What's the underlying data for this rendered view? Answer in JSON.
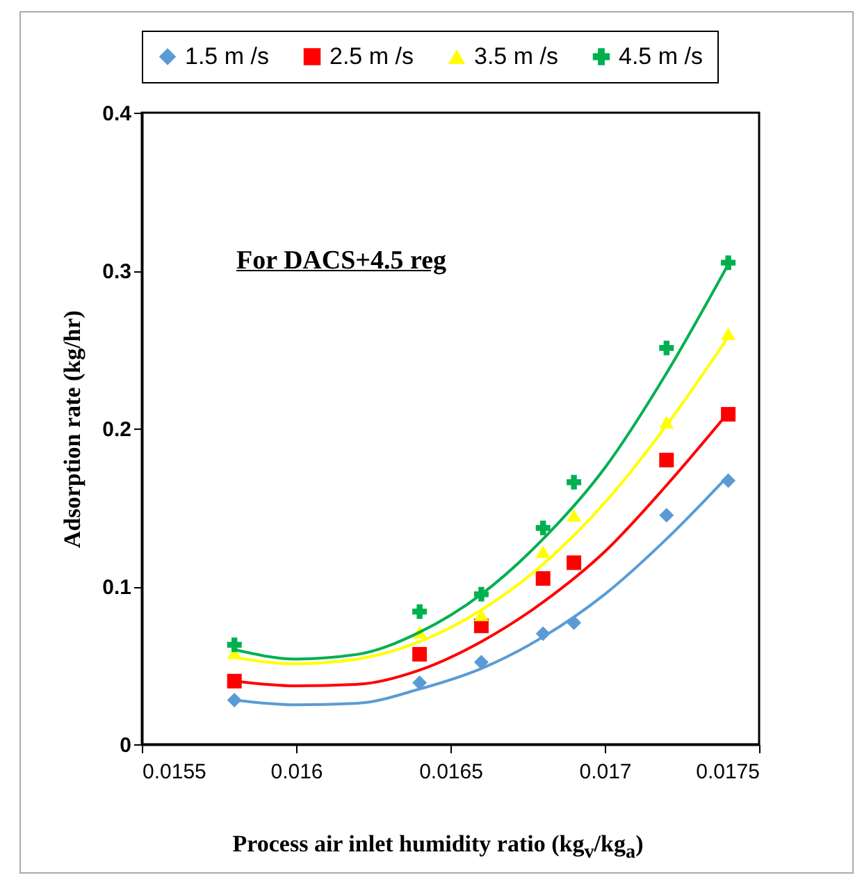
{
  "chart_data": {
    "type": "scatter",
    "xlabel": "Process air inlet humidity ratio (kg$_{v}$/kg$_{a}$)",
    "ylabel": "Adsorption rate (kg/hr)",
    "annotations": [
      "For DACS+4.5 reg"
    ],
    "x": [
      0.0158,
      0.0164,
      0.0166,
      0.0168,
      0.0169,
      0.0172,
      0.0174
    ],
    "xlim": [
      0.0155,
      0.0175
    ],
    "xticks": [
      0.0155,
      0.016,
      0.0165,
      0.017,
      0.0175
    ],
    "ylim": [
      0,
      0.4
    ],
    "yticks": [
      0,
      0.1,
      0.2,
      0.3,
      0.4
    ],
    "grid": false,
    "legend": "top",
    "series": [
      {
        "name": "1.5 m /s",
        "color": "#5b9bd5",
        "marker": "diamond",
        "values": [
          0.028,
          0.039,
          0.052,
          0.07,
          0.077,
          0.145,
          0.167
        ]
      },
      {
        "name": "2.5 m /s",
        "color": "#ff0000",
        "marker": "square",
        "values": [
          0.04,
          0.057,
          0.075,
          0.105,
          0.115,
          0.18,
          0.209
        ]
      },
      {
        "name": "3.5 m /s",
        "color": "#ffff00",
        "marker": "triangle",
        "values": [
          0.058,
          0.071,
          0.082,
          0.122,
          0.145,
          0.204,
          0.26
        ]
      },
      {
        "name": "4.5 m /s",
        "color": "#00b050",
        "marker": "cross",
        "values": [
          0.063,
          0.084,
          0.095,
          0.137,
          0.166,
          0.251,
          0.305
        ]
      },
      {
        "type": "line",
        "color": "#5b9bd5",
        "x": [
          0.0158,
          0.016,
          0.0162,
          0.0164,
          0.0166,
          0.0168,
          0.017,
          0.0172,
          0.0174
        ],
        "values": [
          0.028,
          0.025,
          0.026,
          0.035,
          0.048,
          0.068,
          0.095,
          0.13,
          0.17
        ]
      },
      {
        "type": "line",
        "color": "#ff0000",
        "x": [
          0.0158,
          0.016,
          0.0162,
          0.0164,
          0.0166,
          0.0168,
          0.017,
          0.0172,
          0.0174
        ],
        "values": [
          0.04,
          0.037,
          0.038,
          0.047,
          0.065,
          0.09,
          0.122,
          0.164,
          0.21
        ]
      },
      {
        "type": "line",
        "color": "#ffff00",
        "x": [
          0.0158,
          0.016,
          0.0162,
          0.0164,
          0.0166,
          0.0168,
          0.017,
          0.0172,
          0.0174
        ],
        "values": [
          0.055,
          0.051,
          0.054,
          0.065,
          0.085,
          0.114,
          0.153,
          0.202,
          0.258
        ]
      },
      {
        "type": "line",
        "color": "#00b050",
        "x": [
          0.0158,
          0.016,
          0.0162,
          0.0164,
          0.0166,
          0.0168,
          0.017,
          0.0172,
          0.0174
        ],
        "values": [
          0.06,
          0.054,
          0.057,
          0.071,
          0.095,
          0.13,
          0.175,
          0.235,
          0.304
        ]
      }
    ]
  }
}
